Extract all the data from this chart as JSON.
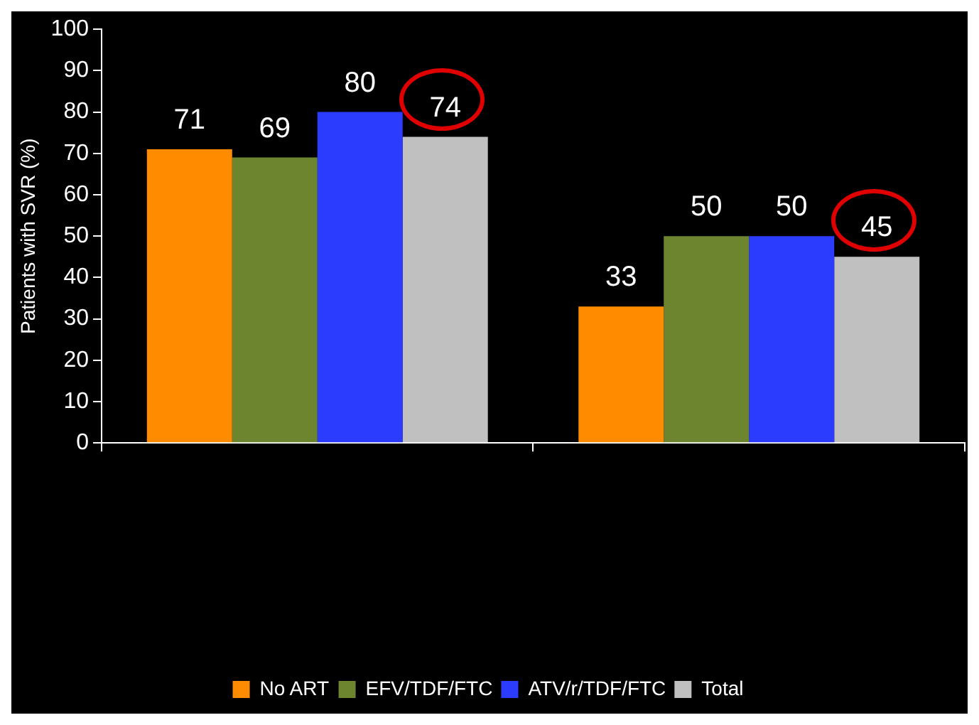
{
  "chart_data": {
    "type": "bar",
    "ylabel": "Patients with SVR (%)",
    "categories": [
      null,
      null
    ],
    "series": [
      {
        "name": "No ART",
        "color": "#ff8c00",
        "values": [
          71,
          33
        ]
      },
      {
        "name": "EFV/TDF/FTC",
        "color": "#6e8530",
        "values": [
          69,
          50
        ]
      },
      {
        "name": "ATV/r/TDF/FTC",
        "color": "#2b3cff",
        "values": [
          80,
          50
        ]
      },
      {
        "name": "Total",
        "color": "#c0c0c0",
        "values": [
          74,
          45
        ]
      }
    ],
    "ylim": [
      0,
      100
    ],
    "yticks": [
      0,
      10,
      20,
      30,
      40,
      50,
      60,
      70,
      80,
      90,
      100
    ],
    "grid": false,
    "legend": "bottom",
    "data_labels": true
  }
}
